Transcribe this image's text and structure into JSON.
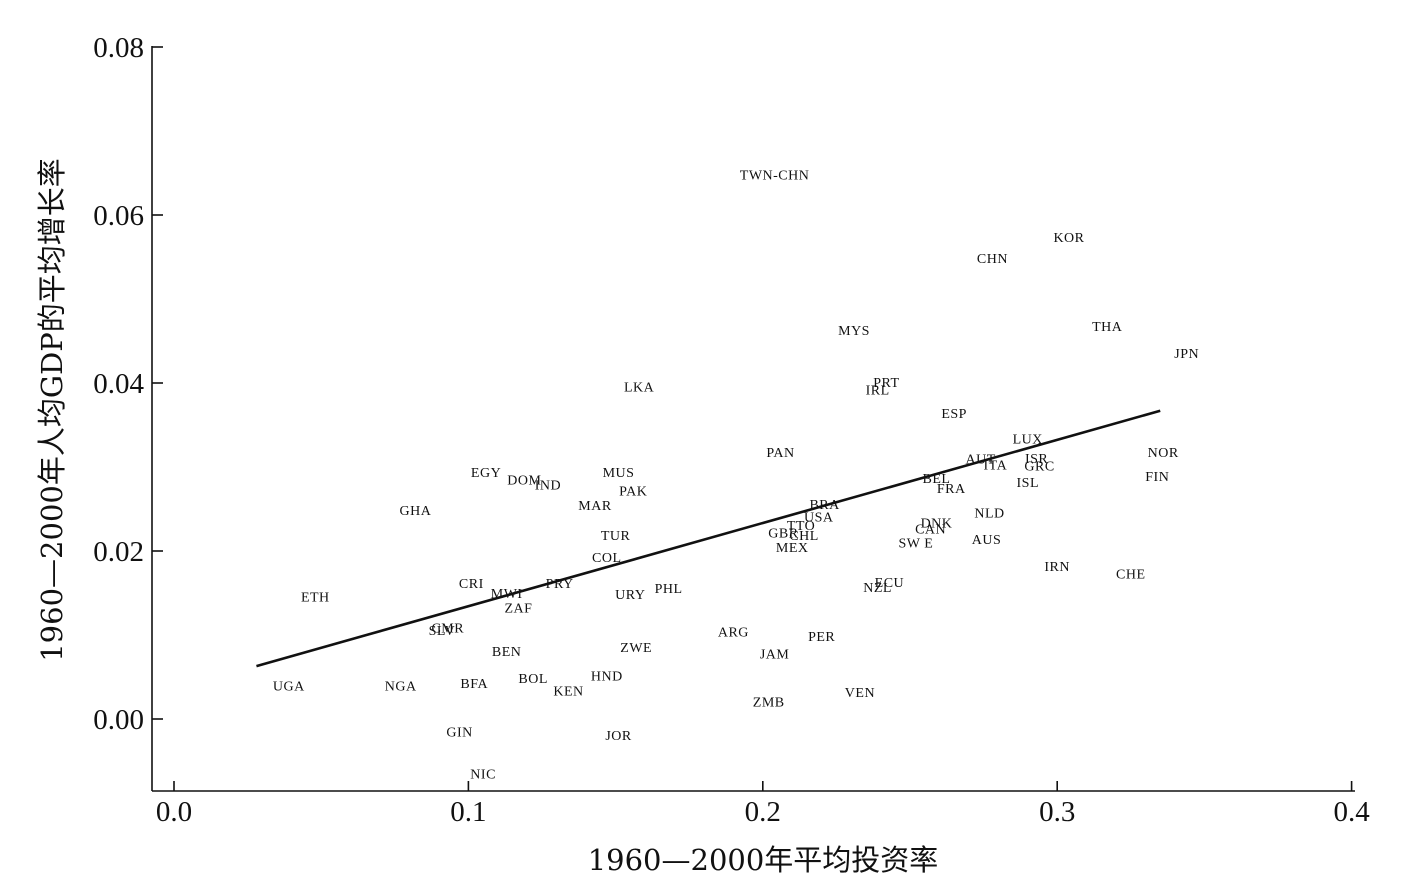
{
  "chart_data": {
    "type": "scatter",
    "title": "",
    "xlabel": "1960—2000年平均投资率",
    "ylabel": "1960—2000年人均GDP的平均增长率",
    "xlim": [
      -0.007,
      0.4
    ],
    "ylim": [
      -0.0085,
      0.08
    ],
    "xticks": [
      0.0,
      0.1,
      0.2,
      0.3,
      0.4
    ],
    "xtick_labels": [
      "0.0",
      "0.1",
      "0.2",
      "0.3",
      "0.4"
    ],
    "yticks": [
      0.0,
      0.02,
      0.04,
      0.06,
      0.08
    ],
    "ytick_labels": [
      "0.00",
      "0.02",
      "0.04",
      "0.06",
      "0.08"
    ],
    "grid": false,
    "legend": "none",
    "fit_line": {
      "x": [
        0.028,
        0.335
      ],
      "y": [
        0.0063,
        0.0367
      ]
    },
    "points": [
      {
        "label": "TWN-CHN",
        "x": 0.204,
        "y": 0.0648
      },
      {
        "label": "KOR",
        "x": 0.304,
        "y": 0.0574
      },
      {
        "label": "CHN",
        "x": 0.278,
        "y": 0.0549
      },
      {
        "label": "THA",
        "x": 0.317,
        "y": 0.0468
      },
      {
        "label": "MYS",
        "x": 0.231,
        "y": 0.0463
      },
      {
        "label": "JPN",
        "x": 0.344,
        "y": 0.0436
      },
      {
        "label": "PRT",
        "x": 0.242,
        "y": 0.0401
      },
      {
        "label": "IRL",
        "x": 0.239,
        "y": 0.0392
      },
      {
        "label": "LKA",
        "x": 0.158,
        "y": 0.0396
      },
      {
        "label": "ESP",
        "x": 0.265,
        "y": 0.0364
      },
      {
        "label": "LUX",
        "x": 0.29,
        "y": 0.0334
      },
      {
        "label": "PAN",
        "x": 0.206,
        "y": 0.0318
      },
      {
        "label": "NOR",
        "x": 0.336,
        "y": 0.0318
      },
      {
        "label": "AUT",
        "x": 0.274,
        "y": 0.031
      },
      {
        "label": "ISR",
        "x": 0.293,
        "y": 0.0311
      },
      {
        "label": "ITA",
        "x": 0.279,
        "y": 0.0303
      },
      {
        "label": "GRC",
        "x": 0.294,
        "y": 0.0302
      },
      {
        "label": "EGY",
        "x": 0.106,
        "y": 0.0294
      },
      {
        "label": "MUS",
        "x": 0.151,
        "y": 0.0294
      },
      {
        "label": "FIN",
        "x": 0.334,
        "y": 0.0289
      },
      {
        "label": "BEL",
        "x": 0.259,
        "y": 0.0287
      },
      {
        "label": "DOM",
        "x": 0.119,
        "y": 0.0285
      },
      {
        "label": "IND",
        "x": 0.127,
        "y": 0.0279
      },
      {
        "label": "ISL",
        "x": 0.29,
        "y": 0.0282
      },
      {
        "label": "FRA",
        "x": 0.264,
        "y": 0.0275
      },
      {
        "label": "PAK",
        "x": 0.156,
        "y": 0.0272
      },
      {
        "label": "MAR",
        "x": 0.143,
        "y": 0.0255
      },
      {
        "label": "BRA",
        "x": 0.221,
        "y": 0.0256
      },
      {
        "label": "GHA",
        "x": 0.082,
        "y": 0.0249
      },
      {
        "label": "NLD",
        "x": 0.277,
        "y": 0.0246
      },
      {
        "label": "USA",
        "x": 0.219,
        "y": 0.0241
      },
      {
        "label": "DNK",
        "x": 0.259,
        "y": 0.0234
      },
      {
        "label": "TTO",
        "x": 0.213,
        "y": 0.0231
      },
      {
        "label": "CAN",
        "x": 0.257,
        "y": 0.0227
      },
      {
        "label": "GBR",
        "x": 0.207,
        "y": 0.0222
      },
      {
        "label": "TUR",
        "x": 0.15,
        "y": 0.0219
      },
      {
        "label": "CHL",
        "x": 0.214,
        "y": 0.0219
      },
      {
        "label": "AUS",
        "x": 0.276,
        "y": 0.0214
      },
      {
        "label": "SW E",
        "x": 0.252,
        "y": 0.021
      },
      {
        "label": "MEX",
        "x": 0.21,
        "y": 0.0205
      },
      {
        "label": "COL",
        "x": 0.147,
        "y": 0.0193
      },
      {
        "label": "IRN",
        "x": 0.3,
        "y": 0.0182
      },
      {
        "label": "CHE",
        "x": 0.325,
        "y": 0.0173
      },
      {
        "label": "CRI",
        "x": 0.101,
        "y": 0.0162
      },
      {
        "label": "PRY",
        "x": 0.131,
        "y": 0.0162
      },
      {
        "label": "ECU",
        "x": 0.243,
        "y": 0.0163
      },
      {
        "label": "NZL",
        "x": 0.239,
        "y": 0.0157
      },
      {
        "label": "PHL",
        "x": 0.168,
        "y": 0.0156
      },
      {
        "label": "MWI",
        "x": 0.113,
        "y": 0.015
      },
      {
        "label": "URY",
        "x": 0.155,
        "y": 0.0149
      },
      {
        "label": "ETH",
        "x": 0.048,
        "y": 0.0146
      },
      {
        "label": "ZAF",
        "x": 0.117,
        "y": 0.0133
      },
      {
        "label": "CMR",
        "x": 0.093,
        "y": 0.0109
      },
      {
        "label": "SLV",
        "x": 0.091,
        "y": 0.0106
      },
      {
        "label": "ARG",
        "x": 0.19,
        "y": 0.0104
      },
      {
        "label": "PER",
        "x": 0.22,
        "y": 0.0099
      },
      {
        "label": "ZWE",
        "x": 0.157,
        "y": 0.0086
      },
      {
        "label": "BEN",
        "x": 0.113,
        "y": 0.0081
      },
      {
        "label": "JAM",
        "x": 0.204,
        "y": 0.0078
      },
      {
        "label": "HND",
        "x": 0.147,
        "y": 0.0052
      },
      {
        "label": "BOL",
        "x": 0.122,
        "y": 0.0049
      },
      {
        "label": "BFA",
        "x": 0.102,
        "y": 0.0043
      },
      {
        "label": "UGA",
        "x": 0.039,
        "y": 0.004
      },
      {
        "label": "NGA",
        "x": 0.077,
        "y": 0.004
      },
      {
        "label": "KEN",
        "x": 0.134,
        "y": 0.0034
      },
      {
        "label": "VEN",
        "x": 0.233,
        "y": 0.0032
      },
      {
        "label": "ZMB",
        "x": 0.202,
        "y": 0.0021
      },
      {
        "label": "GIN",
        "x": 0.097,
        "y": -0.0015
      },
      {
        "label": "JOR",
        "x": 0.151,
        "y": -0.0019
      },
      {
        "label": "NIC",
        "x": 0.105,
        "y": -0.0065
      }
    ]
  }
}
